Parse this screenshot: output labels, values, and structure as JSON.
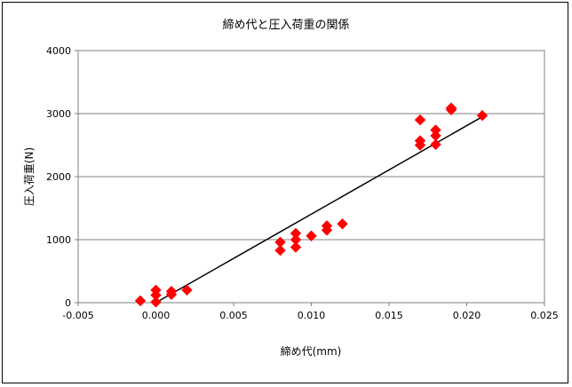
{
  "chart_data": {
    "type": "scatter",
    "title": "締め代と圧入荷重の関係",
    "xlabel": "締め代(mm)",
    "ylabel": "圧入荷重(N)",
    "xlim": [
      -0.005,
      0.025
    ],
    "ylim": [
      0,
      4000
    ],
    "xticks": [
      "-0.005",
      "0.000",
      "0.005",
      "0.010",
      "0.015",
      "0.020",
      "0.025"
    ],
    "yticks": [
      "0",
      "1000",
      "2000",
      "3000",
      "4000"
    ],
    "grid": "horizontal",
    "marker_color": "#ff0000",
    "trendline": {
      "x": [
        0.0,
        0.021
      ],
      "y": [
        0,
        2950
      ],
      "color": "#000000"
    },
    "points": [
      {
        "x": -0.001,
        "y": 30
      },
      {
        "x": 0.0,
        "y": 10
      },
      {
        "x": 0.0,
        "y": 120
      },
      {
        "x": 0.0,
        "y": 200
      },
      {
        "x": 0.001,
        "y": 130
      },
      {
        "x": 0.001,
        "y": 180
      },
      {
        "x": 0.002,
        "y": 200
      },
      {
        "x": 0.008,
        "y": 830
      },
      {
        "x": 0.008,
        "y": 960
      },
      {
        "x": 0.009,
        "y": 880
      },
      {
        "x": 0.009,
        "y": 1000
      },
      {
        "x": 0.009,
        "y": 1100
      },
      {
        "x": 0.01,
        "y": 1060
      },
      {
        "x": 0.011,
        "y": 1150
      },
      {
        "x": 0.011,
        "y": 1220
      },
      {
        "x": 0.012,
        "y": 1250
      },
      {
        "x": 0.017,
        "y": 2500
      },
      {
        "x": 0.017,
        "y": 2570
      },
      {
        "x": 0.017,
        "y": 2900
      },
      {
        "x": 0.018,
        "y": 2510
      },
      {
        "x": 0.018,
        "y": 2650
      },
      {
        "x": 0.018,
        "y": 2740
      },
      {
        "x": 0.019,
        "y": 3060
      },
      {
        "x": 0.019,
        "y": 3090
      },
      {
        "x": 0.021,
        "y": 2970
      }
    ]
  }
}
